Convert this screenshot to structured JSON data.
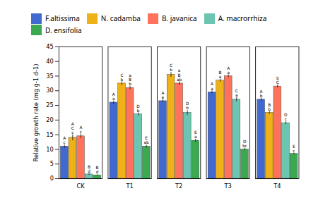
{
  "chart_data": {
    "type": "bar",
    "categories": [
      "CK",
      "T1",
      "T2",
      "T3",
      "T4"
    ],
    "ylabel": "Relative growth rate (mg g-1 d-1)",
    "ylim": [
      0,
      45
    ],
    "yticks": [
      0,
      5,
      10,
      15,
      20,
      25,
      30,
      35,
      40,
      45
    ],
    "grid": false,
    "legend": "top",
    "series": [
      {
        "name": "F.altissima",
        "values": [
          11.0,
          26.0,
          26.5,
          29.5,
          27.0
        ],
        "errors": [
          0.6,
          0.5,
          0.5,
          0.5,
          0.5
        ],
        "annotations": [
          "A\nc",
          "A\na",
          "A\na",
          "A\na",
          "A\nb"
        ]
      },
      {
        "name": "N. cadamba",
        "values": [
          14.0,
          32.5,
          35.5,
          33.5,
          22.5
        ],
        "errors": [
          1.0,
          0.6,
          0.8,
          0.5,
          0.5
        ],
        "annotations": [
          "A\nC\nc",
          "C\nb",
          "C\nb",
          "B\na",
          "B\nb"
        ]
      },
      {
        "name": "B. javanica",
        "values": [
          14.5,
          31.0,
          32.5,
          35.0,
          31.5
        ],
        "errors": [
          0.8,
          0.6,
          0.6,
          0.5,
          0.5
        ],
        "annotations": [
          "A\nc",
          "a\nB\nb",
          "a\nB\nab",
          "A\na",
          "b\nC"
        ]
      },
      {
        "name": "A. macrorrhiza",
        "values": [
          1.5,
          22.0,
          22.5,
          27.0,
          19.0
        ],
        "errors": [
          0.3,
          0.5,
          0.8,
          0.7,
          0.5
        ],
        "annotations": [
          "B\nd",
          "D\nb",
          "D\nb",
          "C\na",
          "D\nc"
        ]
      },
      {
        "name": "D. ensifolia",
        "values": [
          1.2,
          11.0,
          13.0,
          10.0,
          8.5
        ],
        "errors": [
          0.2,
          0.5,
          0.5,
          0.4,
          0.3
        ],
        "annotations": [
          "B\nd",
          "E\nab",
          "E\na",
          "D\nbc",
          "E\nc"
        ]
      }
    ]
  }
}
